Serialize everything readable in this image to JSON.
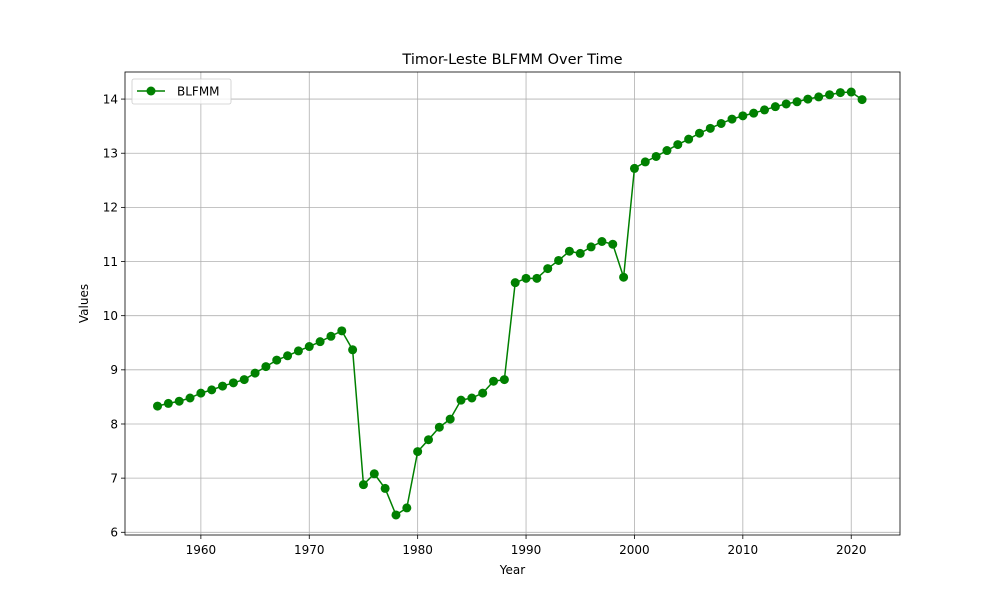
{
  "chart_data": {
    "type": "line",
    "title": "Timor-Leste BLFMM Over Time",
    "xlabel": "Year",
    "ylabel": "Values",
    "xlim": [
      1953,
      2024.5
    ],
    "ylim": [
      5.95,
      14.5
    ],
    "xticks": [
      1960,
      1970,
      1980,
      1990,
      2000,
      2010,
      2020
    ],
    "yticks": [
      6,
      7,
      8,
      9,
      10,
      11,
      12,
      13,
      14
    ],
    "grid": true,
    "legend": "top-left",
    "series": [
      {
        "name": "BLFMM",
        "color": "#008000",
        "marker": "circle",
        "x": [
          1956,
          1957,
          1958,
          1959,
          1960,
          1961,
          1962,
          1963,
          1964,
          1965,
          1966,
          1967,
          1968,
          1969,
          1970,
          1971,
          1972,
          1973,
          1974,
          1975,
          1976,
          1977,
          1978,
          1979,
          1980,
          1981,
          1982,
          1983,
          1984,
          1985,
          1986,
          1987,
          1988,
          1989,
          1990,
          1991,
          1992,
          1993,
          1994,
          1995,
          1996,
          1997,
          1998,
          1999,
          2000,
          2001,
          2002,
          2003,
          2004,
          2005,
          2006,
          2007,
          2008,
          2009,
          2010,
          2011,
          2012,
          2013,
          2014,
          2015,
          2016,
          2017,
          2018,
          2019,
          2020,
          2021
        ],
        "y": [
          8.33,
          8.38,
          8.42,
          8.48,
          8.57,
          8.63,
          8.7,
          8.76,
          8.82,
          8.94,
          9.06,
          9.18,
          9.26,
          9.35,
          9.43,
          9.52,
          9.62,
          9.72,
          9.37,
          6.88,
          7.08,
          6.81,
          6.32,
          6.45,
          7.49,
          7.71,
          7.94,
          8.09,
          8.44,
          8.48,
          8.57,
          8.79,
          8.82,
          10.61,
          10.69,
          10.69,
          10.87,
          11.02,
          11.19,
          11.15,
          11.27,
          11.37,
          11.32,
          10.71,
          12.72,
          12.84,
          12.94,
          13.05,
          13.16,
          13.26,
          13.37,
          13.46,
          13.55,
          13.63,
          13.69,
          13.74,
          13.8,
          13.86,
          13.91,
          13.95,
          14.0,
          14.04,
          14.08,
          14.12,
          14.13,
          13.99
        ]
      }
    ]
  }
}
